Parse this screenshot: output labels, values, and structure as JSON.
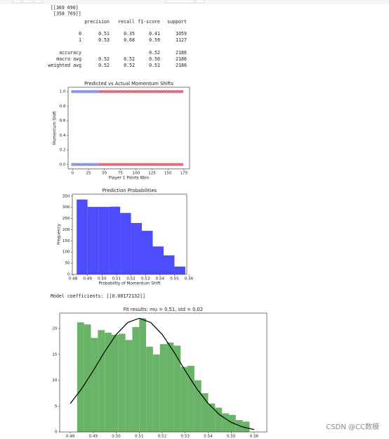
{
  "output": {
    "confusion_matrix": [
      "[[369 690]",
      " [358 769]]"
    ],
    "report": {
      "header": [
        "precision",
        "recall",
        "f1-score",
        "support"
      ],
      "rows": [
        {
          "label": "0",
          "cells": [
            "0.51",
            "0.35",
            "0.41",
            "1059"
          ]
        },
        {
          "label": "1",
          "cells": [
            "0.53",
            "0.68",
            "0.59",
            "1127"
          ]
        },
        {
          "label": "accuracy",
          "cells": [
            "0.52",
            "2186"
          ]
        },
        {
          "label": "macro avg",
          "cells": [
            "0.52",
            "0.52",
            "0.50",
            "2186"
          ]
        },
        {
          "label": "weighted avg",
          "cells": [
            "0.52",
            "0.52",
            "0.51",
            "2186"
          ]
        }
      ]
    },
    "coefficients": "Model coefficients: [[0.00172132]]"
  },
  "chart_data": [
    {
      "type": "scatter",
      "title": "Predicted vs Actual Momentum Shifts",
      "xlabel": "Player 1 Points Won",
      "ylabel": "Momentum Shift",
      "xlim": [
        -7,
        184
      ],
      "ylim": [
        -0.06,
        1.06
      ],
      "xticks": [
        0,
        25,
        50,
        75,
        100,
        125,
        150,
        175
      ],
      "yticks": [
        {
          "value": 0,
          "label": "0.0"
        },
        {
          "value": 0.2,
          "label": "0.2"
        },
        {
          "value": 0.4,
          "label": "0.4"
        },
        {
          "value": 0.6,
          "label": "0.6"
        },
        {
          "value": 0.8,
          "label": "0.8"
        },
        {
          "value": 1,
          "label": "1.0"
        }
      ],
      "series": [
        {
          "color": "#3a4fd0",
          "x": [
            0,
            4,
            8,
            12,
            16,
            20,
            24,
            28,
            32,
            36,
            40
          ],
          "values": [
            1,
            1,
            1,
            1,
            1,
            1,
            1,
            1,
            1,
            1,
            1
          ]
        },
        {
          "color": "#c0102a",
          "x": [
            44,
            48,
            52,
            56,
            60,
            64,
            68,
            72,
            76,
            80,
            84,
            88,
            92,
            96,
            100,
            104,
            108,
            112,
            116,
            120,
            124,
            128,
            132,
            136,
            140,
            144,
            148,
            152,
            156,
            160,
            164,
            168,
            172
          ],
          "values": [
            1,
            1,
            1,
            1,
            1,
            1,
            1,
            1,
            1,
            1,
            1,
            1,
            1,
            1,
            1,
            1,
            1,
            1,
            1,
            1,
            1,
            1,
            1,
            1,
            1,
            1,
            1,
            1,
            1,
            1,
            1,
            1,
            1
          ]
        },
        {
          "color": "#3a4fd0",
          "x": [
            0,
            4,
            8,
            12,
            16,
            20,
            24,
            28,
            32,
            36,
            40
          ],
          "values": [
            0,
            0,
            0,
            0,
            0,
            0,
            0,
            0,
            0,
            0,
            0
          ]
        },
        {
          "color": "#c0102a",
          "x": [
            44,
            48,
            52,
            56,
            60,
            64,
            68,
            72,
            76,
            80,
            84,
            88,
            92,
            96,
            100,
            104,
            108,
            112,
            116,
            120,
            124,
            128,
            132,
            136,
            140,
            144,
            148,
            152,
            156,
            160,
            164,
            168,
            172
          ],
          "values": [
            0,
            0,
            0,
            0,
            0,
            0,
            0,
            0,
            0,
            0,
            0,
            0,
            0,
            0,
            0,
            0,
            0,
            0,
            0,
            0,
            0,
            0,
            0,
            0,
            0,
            0,
            0,
            0,
            0,
            0,
            0,
            0,
            0
          ]
        }
      ]
    },
    {
      "type": "histogram",
      "title": "Prediction Probabilities",
      "xlabel": "Probability of Momentum Shift",
      "ylabel": "Frequency",
      "color": "#4d4dff",
      "bins": [
        0.4825,
        0.49,
        0.4975,
        0.505,
        0.5125,
        0.52,
        0.5275,
        0.535,
        0.5425,
        0.55,
        0.5575
      ],
      "values": [
        335,
        302,
        302,
        303,
        275,
        230,
        195,
        125,
        85,
        35
      ],
      "xlim": [
        0.4795,
        0.5585
      ],
      "ylim": [
        0,
        359
      ],
      "xticks": [
        0.48,
        0.49,
        {
          "value": 0.5,
          "label": "0.50"
        },
        0.51,
        0.52,
        0.53,
        0.54,
        0.55,
        0.56
      ],
      "yticks": [
        0,
        50,
        100,
        150,
        200,
        250,
        300,
        350
      ]
    },
    {
      "type": "histogram",
      "title": "Fit results: mu = 0.51,  std = 0.02",
      "color": "#6ab46a",
      "bins": [
        0.483,
        0.486,
        0.489,
        0.492,
        0.495,
        0.498,
        0.501,
        0.504,
        0.507,
        0.51,
        0.513,
        0.516,
        0.519,
        0.522,
        0.525,
        0.528,
        0.531,
        0.534,
        0.537,
        0.54,
        0.543,
        0.546,
        0.549,
        0.552,
        0.555,
        0.558
      ],
      "values": [
        21.2,
        20.8,
        18.2,
        19.7,
        19.2,
        18.8,
        19.0,
        17.8,
        20.3,
        22.0,
        16.5,
        15.0,
        17.0,
        17.3,
        16.7,
        12.6,
        12.8,
        10.0,
        7.5,
        5.5,
        4.7,
        3.6,
        3.3,
        2.3,
        2.0
      ],
      "curve": {
        "color": "#000000",
        "x": [
          0.48,
          0.485,
          0.49,
          0.495,
          0.5,
          0.505,
          0.51,
          0.515,
          0.52,
          0.525,
          0.53,
          0.535,
          0.54,
          0.545,
          0.55,
          0.555,
          0.56
        ],
        "values": [
          5.49,
          8.39,
          11.87,
          15.55,
          18.86,
          21.17,
          22,
          21.17,
          18.86,
          15.55,
          11.87,
          8.39,
          5.49,
          3.32,
          1.86,
          0.97,
          0.46
        ]
      },
      "xlim": [
        0.4754,
        0.5655
      ],
      "ylim": [
        0,
        23
      ],
      "xticks": [
        0.48,
        0.49,
        {
          "value": 0.5,
          "label": "0.50"
        },
        0.51,
        0.52,
        0.53,
        0.54,
        0.55,
        0.56
      ],
      "yticks": [
        0,
        5,
        10,
        15,
        20
      ]
    }
  ],
  "watermark": "CSDN @CC数模"
}
